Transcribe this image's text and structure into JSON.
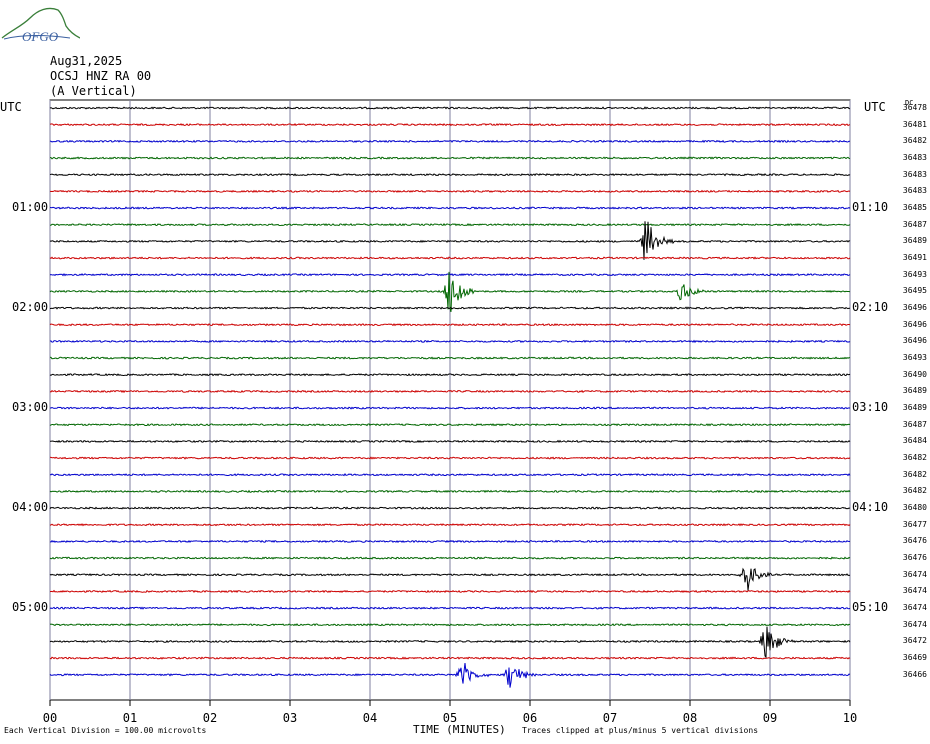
{
  "header": {
    "date": "Aug31,2025",
    "station": "OCSJ HNZ RA 00",
    "component": "(A Vertical)",
    "logo_text": "OFGO"
  },
  "axis": {
    "left_title": "UTC",
    "right_title": "UTC",
    "dc_title": "DC",
    "xlabel": "TIME (MINUTES)",
    "footer_left": "Each Vertical Division =  100.00 microvolts",
    "footer_right": "Traces clipped at plus/minus 5 vertical divisions"
  },
  "colors": {
    "black": "#000000",
    "red": "#cc0000",
    "blue": "#0000cc",
    "green": "#006600",
    "grid": "#7f7f9f"
  },
  "chart_data": {
    "type": "line",
    "chart_kind": "helicorder",
    "x_ticks": [
      "00",
      "01",
      "02",
      "03",
      "04",
      "05",
      "06",
      "07",
      "08",
      "09",
      "10"
    ],
    "xlim": [
      0,
      10
    ],
    "left_labels": [
      {
        "row": 6,
        "text": "01:00"
      },
      {
        "row": 12,
        "text": "02:00"
      },
      {
        "row": 18,
        "text": "03:00"
      },
      {
        "row": 24,
        "text": "04:00"
      },
      {
        "row": 30,
        "text": "05:00"
      }
    ],
    "right_labels": [
      {
        "row": 6,
        "text": "01:10"
      },
      {
        "row": 12,
        "text": "02:10"
      },
      {
        "row": 18,
        "text": "03:10"
      },
      {
        "row": 24,
        "text": "04:10"
      },
      {
        "row": 30,
        "text": "05:10"
      }
    ],
    "dc_offsets": [
      "36478",
      "36481",
      "36482",
      "36483",
      "36483",
      "36483",
      "36485",
      "36487",
      "36489",
      "36491",
      "36493",
      "36495",
      "36496",
      "36496",
      "36496",
      "36493",
      "36490",
      "36489",
      "36489",
      "36487",
      "36484",
      "36482",
      "36482",
      "36482",
      "36480",
      "36477",
      "36476",
      "36476",
      "36474",
      "36474",
      "36474",
      "36474",
      "36472",
      "36469",
      "36466"
    ],
    "trace_color_cycle": [
      "black",
      "red",
      "blue",
      "green"
    ],
    "events": [
      {
        "row": 8,
        "minute": 7.45,
        "amplitude": 1.6
      },
      {
        "row": 11,
        "minute": 5.0,
        "amplitude": 2.0
      },
      {
        "row": 11,
        "minute": 7.9,
        "amplitude": 0.7
      },
      {
        "row": 28,
        "minute": 8.7,
        "amplitude": 1.2
      },
      {
        "row": 32,
        "minute": 8.95,
        "amplitude": 1.4
      },
      {
        "row": 34,
        "minute": 5.15,
        "amplitude": 1.0
      },
      {
        "row": 34,
        "minute": 5.75,
        "amplitude": 1.0
      }
    ]
  }
}
